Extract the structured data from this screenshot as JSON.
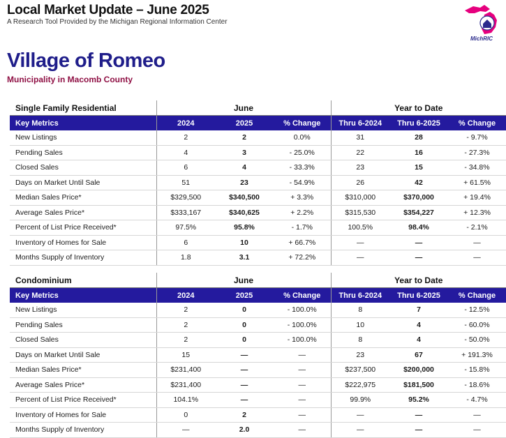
{
  "header": {
    "title": "Local Market Update – June 2025",
    "subtitle": "A Research Tool Provided by the Michigan Regional Information Center",
    "logo_text": "MichRIC"
  },
  "place": {
    "name": "Village of Romeo",
    "subtitle": "Municipality in Macomb County"
  },
  "colors": {
    "header_band": "#241a9e",
    "place_title": "#1f1d8a",
    "place_sub": "#8f1044",
    "logo": "#e6007e"
  },
  "sections": [
    {
      "name": "Single Family Residential",
      "group_june": "June",
      "group_ytd": "Year to Date",
      "columns": [
        "Key Metrics",
        "2024",
        "2025",
        "% Change",
        "Thru 6-2024",
        "Thru 6-2025",
        "% Change"
      ],
      "rows": [
        [
          "New Listings",
          "2",
          "2",
          "0.0%",
          "31",
          "28",
          "- 9.7%"
        ],
        [
          "Pending Sales",
          "4",
          "3",
          "- 25.0%",
          "22",
          "16",
          "- 27.3%"
        ],
        [
          "Closed Sales",
          "6",
          "4",
          "- 33.3%",
          "23",
          "15",
          "- 34.8%"
        ],
        [
          "Days on Market Until Sale",
          "51",
          "23",
          "- 54.9%",
          "26",
          "42",
          "+ 61.5%"
        ],
        [
          "Median Sales Price*",
          "$329,500",
          "$340,500",
          "+ 3.3%",
          "$310,000",
          "$370,000",
          "+ 19.4%"
        ],
        [
          "Average Sales Price*",
          "$333,167",
          "$340,625",
          "+ 2.2%",
          "$315,530",
          "$354,227",
          "+ 12.3%"
        ],
        [
          "Percent of List Price Received*",
          "97.5%",
          "95.8%",
          "- 1.7%",
          "100.5%",
          "98.4%",
          "- 2.1%"
        ],
        [
          "Inventory of Homes for Sale",
          "6",
          "10",
          "+ 66.7%",
          "—",
          "—",
          "—"
        ],
        [
          "Months Supply of Inventory",
          "1.8",
          "3.1",
          "+ 72.2%",
          "—",
          "—",
          "—"
        ]
      ]
    },
    {
      "name": "Condominium",
      "group_june": "June",
      "group_ytd": "Year to Date",
      "columns": [
        "Key Metrics",
        "2024",
        "2025",
        "% Change",
        "Thru 6-2024",
        "Thru 6-2025",
        "% Change"
      ],
      "rows": [
        [
          "New Listings",
          "2",
          "0",
          "- 100.0%",
          "8",
          "7",
          "- 12.5%"
        ],
        [
          "Pending Sales",
          "2",
          "0",
          "- 100.0%",
          "10",
          "4",
          "- 60.0%"
        ],
        [
          "Closed Sales",
          "2",
          "0",
          "- 100.0%",
          "8",
          "4",
          "- 50.0%"
        ],
        [
          "Days on Market Until Sale",
          "15",
          "—",
          "—",
          "23",
          "67",
          "+ 191.3%"
        ],
        [
          "Median Sales Price*",
          "$231,400",
          "—",
          "—",
          "$237,500",
          "$200,000",
          "- 15.8%"
        ],
        [
          "Average Sales Price*",
          "$231,400",
          "—",
          "—",
          "$222,975",
          "$181,500",
          "- 18.6%"
        ],
        [
          "Percent of List Price Received*",
          "104.1%",
          "—",
          "—",
          "99.9%",
          "95.2%",
          "- 4.7%"
        ],
        [
          "Inventory of Homes for Sale",
          "0",
          "2",
          "—",
          "—",
          "—",
          "—"
        ],
        [
          "Months Supply of Inventory",
          "—",
          "2.0",
          "—",
          "—",
          "—",
          "—"
        ]
      ]
    }
  ]
}
